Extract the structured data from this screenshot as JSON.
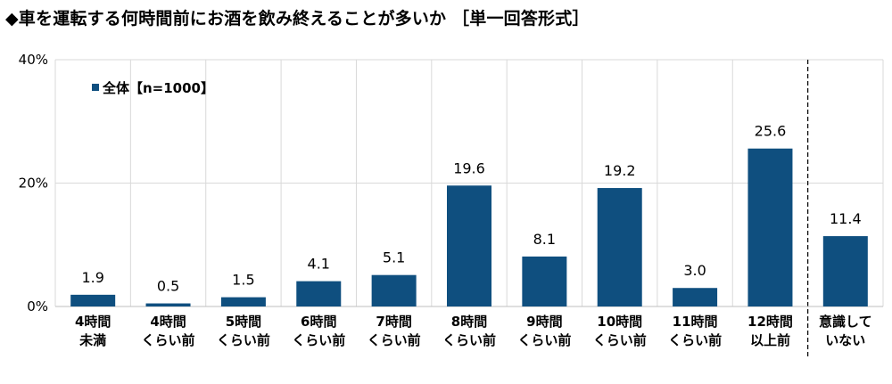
{
  "title": "◆車を運転する何時間前にお酒を飲み終えることが多いか ［単一回答形式］",
  "chart_data": {
    "type": "bar",
    "categories": [
      [
        "4時間",
        "未満"
      ],
      [
        "4時間",
        "くらい前"
      ],
      [
        "5時間",
        "くらい前"
      ],
      [
        "6時間",
        "くらい前"
      ],
      [
        "7時間",
        "くらい前"
      ],
      [
        "8時間",
        "くらい前"
      ],
      [
        "9時間",
        "くらい前"
      ],
      [
        "10時間",
        "くらい前"
      ],
      [
        "11時間",
        "くらい前"
      ],
      [
        "12時間",
        "以上前"
      ],
      [
        "意識して",
        "いない"
      ]
    ],
    "series": [
      {
        "name": "全体【n=1000】",
        "values": [
          1.9,
          0.5,
          1.5,
          4.1,
          5.1,
          19.6,
          8.1,
          19.2,
          3.0,
          25.6,
          11.4
        ]
      }
    ],
    "value_labels": [
      "1.9",
      "0.5",
      "1.5",
      "4.1",
      "5.1",
      "19.6",
      "8.1",
      "19.2",
      "3.0",
      "25.6",
      "11.4"
    ],
    "y_ticks": [
      0,
      20,
      40
    ],
    "y_tick_labels": [
      "0%",
      "20%",
      "40%"
    ],
    "ylim": [
      0,
      40
    ],
    "grid": true,
    "legend_position": "top-left",
    "separator_before_last": true,
    "bar_color": "#0f4f7f",
    "grid_color": "#d9d9d9"
  }
}
